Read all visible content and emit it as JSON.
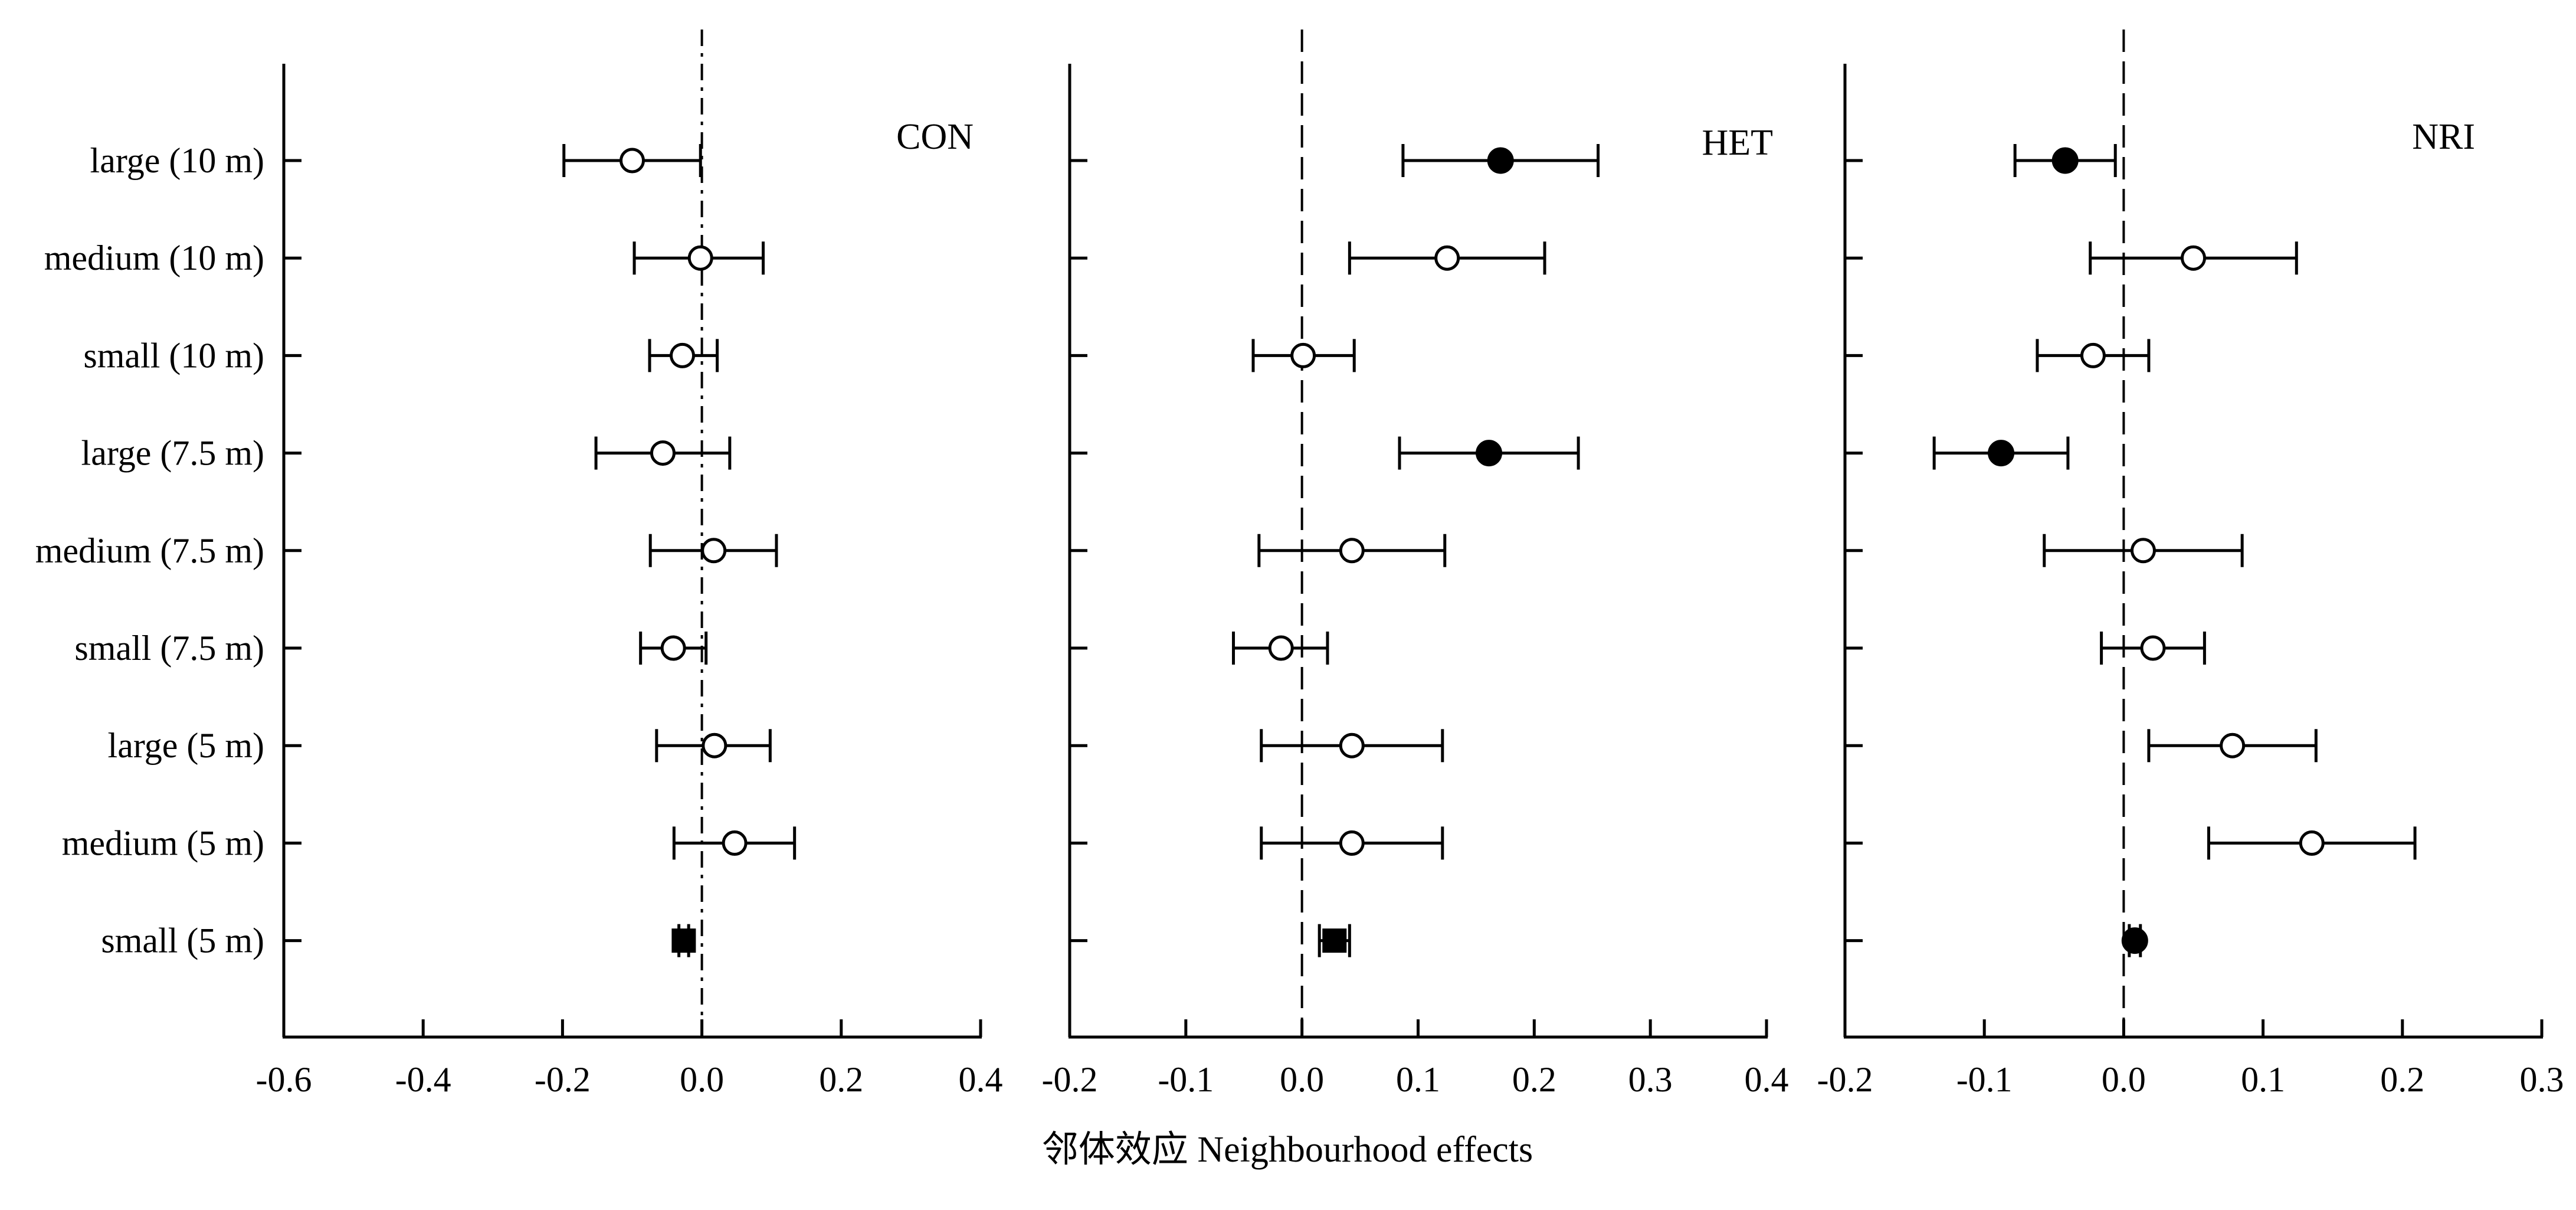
{
  "chart_data": {
    "type": "forest",
    "xlabel": "邻体效应  Neighbourhood effects",
    "categories": [
      "large (10 m)",
      "medium (10 m)",
      "small (10 m)",
      "large (7.5 m)",
      "medium (7.5 m)",
      "small (7.5 m)",
      "large (5 m)",
      "medium (5 m)",
      "small (5 m)"
    ],
    "grid": false,
    "reference_line": 0,
    "panels": [
      {
        "label": "CON",
        "xlim": [
          -0.6,
          0.4
        ],
        "ticks": [
          "-0.6",
          "-0.4",
          "-0.2",
          "0.0",
          "0.2",
          "0.4"
        ],
        "estimates": [
          -0.1,
          -0.002,
          -0.028,
          -0.056,
          0.017,
          -0.041,
          0.018,
          0.047,
          -0.026
        ],
        "ci_lower": [
          -0.198,
          -0.097,
          -0.075,
          -0.152,
          -0.074,
          -0.088,
          -0.065,
          -0.04,
          -0.033
        ],
        "ci_upper": [
          -0.002,
          0.088,
          0.022,
          0.04,
          0.107,
          0.006,
          0.098,
          0.133,
          -0.019
        ],
        "significant": [
          false,
          false,
          false,
          false,
          false,
          false,
          false,
          false,
          true
        ],
        "marker_shape": [
          "circle",
          "circle",
          "circle",
          "circle",
          "circle",
          "circle",
          "circle",
          "circle",
          "square"
        ]
      },
      {
        "label": "HET",
        "xlim": [
          -0.2,
          0.4
        ],
        "ticks": [
          "-0.2",
          "-0.1",
          "0.0",
          "0.1",
          "0.2",
          "0.3",
          "0.4"
        ],
        "estimates": [
          0.171,
          0.125,
          0.001,
          0.161,
          0.043,
          -0.018,
          0.043,
          0.043,
          0.028
        ],
        "ci_lower": [
          0.087,
          0.041,
          -0.042,
          0.084,
          -0.037,
          -0.059,
          -0.035,
          -0.035,
          0.015
        ],
        "ci_upper": [
          0.255,
          0.209,
          0.045,
          0.238,
          0.123,
          0.022,
          0.121,
          0.121,
          0.041
        ],
        "significant": [
          true,
          false,
          false,
          true,
          false,
          false,
          false,
          false,
          true
        ],
        "marker_shape": [
          "circle",
          "circle",
          "circle",
          "circle",
          "circle",
          "circle",
          "circle",
          "circle",
          "square"
        ]
      },
      {
        "label": "NRI",
        "xlim": [
          -0.2,
          0.3
        ],
        "ticks": [
          "-0.2",
          "-0.1",
          "0.0",
          "0.1",
          "0.2",
          "0.3"
        ],
        "estimates": [
          -0.042,
          0.05,
          -0.022,
          -0.088,
          0.014,
          0.021,
          0.078,
          0.135,
          0.008
        ],
        "ci_lower": [
          -0.078,
          -0.024,
          -0.062,
          -0.136,
          -0.057,
          -0.016,
          0.018,
          0.061,
          0.004
        ],
        "ci_upper": [
          -0.006,
          0.124,
          0.018,
          -0.04,
          0.085,
          0.058,
          0.138,
          0.209,
          0.012
        ],
        "significant": [
          true,
          false,
          false,
          true,
          false,
          false,
          false,
          false,
          true
        ],
        "marker_shape": [
          "circle",
          "circle",
          "circle",
          "circle",
          "circle",
          "circle",
          "circle",
          "circle",
          "circle"
        ]
      }
    ]
  }
}
